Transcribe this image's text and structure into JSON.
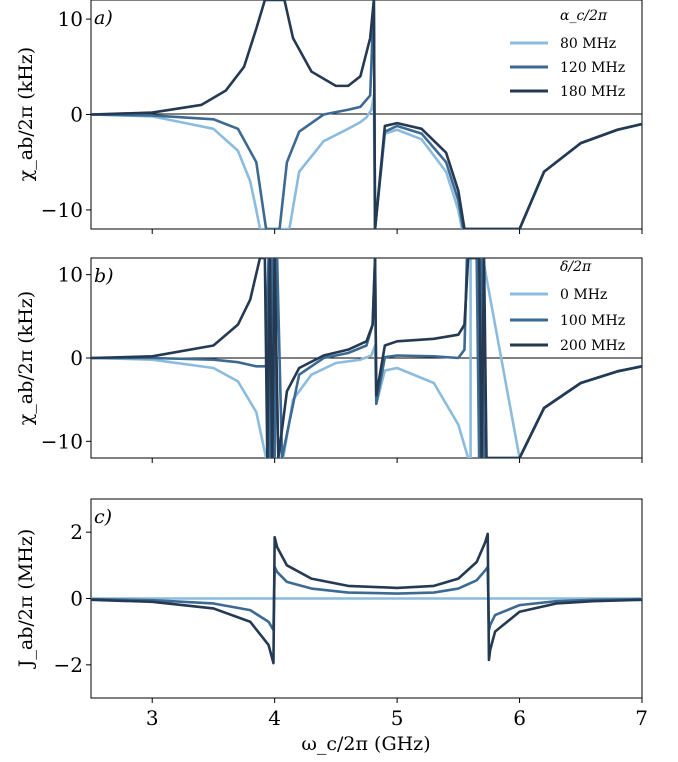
{
  "chart_data": [
    {
      "panel": "a",
      "type": "line",
      "panel_label": "a)",
      "ylabel": "χ_ab/2π (kHz)",
      "xlim": [
        2.5,
        7
      ],
      "ylim": [
        -12,
        12
      ],
      "yticks": [
        -10,
        0,
        10
      ],
      "ytick_labels": [
        "−10",
        "0",
        "10"
      ],
      "zero_line": true,
      "legend_title": "α_c/2π",
      "legend_position": "top-right",
      "series": [
        {
          "name": "80 MHz",
          "color": "#8cbcdd",
          "x": [
            2.5,
            3.0,
            3.5,
            3.7,
            3.8,
            3.85,
            3.88,
            4.12,
            4.2,
            4.4,
            4.6,
            4.7,
            4.75,
            4.79,
            4.81,
            4.819,
            4.9,
            5.0,
            5.2,
            5.4,
            5.5,
            5.53,
            6.0,
            6.2,
            6.5,
            6.8,
            7.0
          ],
          "y": [
            0,
            -0.2,
            -1.5,
            -3.8,
            -7,
            -10,
            -12,
            -12,
            -6,
            -2.8,
            -1.5,
            -0.8,
            -0.3,
            0.5,
            2,
            -12,
            -2,
            -1.6,
            -2.6,
            -6,
            -10,
            -12,
            -12,
            -6,
            -3,
            -1.6,
            -1
          ]
        },
        {
          "name": "120 MHz",
          "color": "#3d6a92",
          "x": [
            2.5,
            3.0,
            3.5,
            3.7,
            3.85,
            3.93,
            4.04,
            4.1,
            4.2,
            4.4,
            4.6,
            4.7,
            4.78,
            4.81,
            4.82,
            4.9,
            5.0,
            5.2,
            5.4,
            5.5,
            5.54,
            6.0,
            6.2,
            6.5,
            6.8,
            7.0
          ],
          "y": [
            0,
            -0.1,
            -0.5,
            -1.5,
            -5,
            -12,
            -12,
            -5,
            -1.8,
            0,
            0.5,
            0.8,
            2,
            12,
            -12,
            -1.8,
            -1.2,
            -2,
            -5,
            -9,
            -12,
            -12,
            -6,
            -3,
            -1.6,
            -1
          ]
        },
        {
          "name": "180 MHz",
          "color": "#253a52",
          "x": [
            2.5,
            3.0,
            3.4,
            3.6,
            3.75,
            3.85,
            3.92,
            4.08,
            4.15,
            4.3,
            4.5,
            4.6,
            4.7,
            4.78,
            4.81,
            4.82,
            4.9,
            5.0,
            5.2,
            5.4,
            5.5,
            5.55,
            6.0,
            6.2,
            6.5,
            6.8,
            7.0
          ],
          "y": [
            0,
            0.2,
            1,
            2.5,
            5,
            9,
            12,
            12,
            8,
            4.5,
            3,
            3,
            4,
            8,
            12,
            -12,
            -1.2,
            -0.9,
            -1.5,
            -4,
            -8,
            -12,
            -12,
            -6,
            -3,
            -1.6,
            -1
          ]
        }
      ]
    },
    {
      "panel": "b",
      "type": "line",
      "panel_label": "b)",
      "ylabel": "χ_ab/2π (kHz)",
      "xlim": [
        2.5,
        7
      ],
      "ylim": [
        -12,
        12
      ],
      "yticks": [
        -10,
        0,
        10
      ],
      "ytick_labels": [
        "−10",
        "0",
        "10"
      ],
      "zero_line": true,
      "legend_title": "δ/2π",
      "legend_position": "top-right",
      "series": [
        {
          "name": "0 MHz",
          "color": "#8cbcdd",
          "x": [
            2.5,
            3.0,
            3.5,
            3.7,
            3.85,
            3.93,
            4.07,
            4.15,
            4.3,
            4.5,
            4.7,
            4.79,
            4.82,
            4.83,
            4.9,
            5.0,
            5.3,
            5.5,
            5.58,
            5.6,
            5.6,
            5.7,
            6.0,
            6.2,
            6.5,
            6.8,
            7.0
          ],
          "y": [
            0,
            -0.2,
            -1.2,
            -2.8,
            -6.5,
            -12,
            -12,
            -5,
            -2,
            -0.6,
            -0.2,
            0.3,
            1.5,
            -5.5,
            -1.5,
            -1.2,
            -3,
            -8,
            -12,
            -12,
            12,
            12,
            -12,
            -6,
            -3,
            -1.6,
            -1
          ]
        },
        {
          "name": "100 MHz",
          "color": "#3d6a92",
          "x": [
            2.5,
            3.0,
            3.5,
            3.7,
            3.85,
            3.93,
            3.95,
            3.96,
            3.98,
            4.0,
            4.02,
            4.06,
            4.2,
            4.4,
            4.6,
            4.75,
            4.8,
            4.82,
            4.83,
            4.9,
            5.0,
            5.3,
            5.5,
            5.55,
            5.57,
            5.65,
            5.67,
            5.69,
            5.71,
            6.0,
            6.2,
            6.5,
            6.8,
            7.0
          ],
          "y": [
            0,
            0,
            -0.2,
            -0.5,
            -1,
            -1,
            12,
            -12,
            12,
            -12,
            12,
            -12,
            -2,
            0,
            0.6,
            1.5,
            4,
            12,
            -5.5,
            0.1,
            0.3,
            0.2,
            0,
            1,
            12,
            12,
            -12,
            12,
            -12,
            -12,
            -6,
            -3,
            -1.6,
            -1
          ]
        },
        {
          "name": "200 MHz",
          "color": "#253a52",
          "x": [
            2.5,
            3.0,
            3.5,
            3.7,
            3.8,
            3.88,
            3.92,
            3.94,
            3.96,
            3.98,
            4.0,
            4.03,
            4.1,
            4.2,
            4.4,
            4.6,
            4.75,
            4.8,
            4.82,
            4.83,
            4.9,
            5.0,
            5.3,
            5.5,
            5.55,
            5.58,
            5.67,
            5.69,
            5.71,
            5.73,
            6.0,
            6.2,
            6.5,
            6.8,
            7.0
          ],
          "y": [
            0,
            0.2,
            1.5,
            4,
            7,
            12,
            12,
            -12,
            12,
            -12,
            12,
            -12,
            -4,
            -1.2,
            0.3,
            1,
            2,
            4,
            12,
            -4.5,
            1.5,
            2,
            2.3,
            2.8,
            4,
            12,
            12,
            -12,
            12,
            -12,
            -12,
            -6,
            -3,
            -1.6,
            -1
          ]
        }
      ]
    },
    {
      "panel": "c",
      "type": "line",
      "panel_label": "c)",
      "ylabel": "J_ab/2π (MHz)",
      "xlabel": "ω_c/2π (GHz)",
      "xlim": [
        2.5,
        7
      ],
      "ylim": [
        -3,
        3
      ],
      "yticks": [
        -2,
        0,
        2
      ],
      "ytick_labels": [
        "−2",
        "0",
        "2"
      ],
      "xticks": [
        3,
        4,
        5,
        6,
        7
      ],
      "xtick_labels": [
        "3",
        "4",
        "5",
        "6",
        "7"
      ],
      "series": [
        {
          "color": "#8cbcdd",
          "x": [
            2.5,
            4.0,
            4.0,
            5.75,
            5.75,
            7.0
          ],
          "y": [
            0,
            0,
            0,
            0,
            0,
            0
          ]
        },
        {
          "color": "#3d6a92",
          "x": [
            2.5,
            3.0,
            3.5,
            3.8,
            3.95,
            3.99,
            4.0,
            4.02,
            4.1,
            4.3,
            4.6,
            5.0,
            5.3,
            5.5,
            5.65,
            5.72,
            5.74,
            5.75,
            5.76,
            5.8,
            6.0,
            6.3,
            6.6,
            7.0
          ],
          "y": [
            -0.02,
            -0.05,
            -0.15,
            -0.35,
            -0.7,
            -0.95,
            0.95,
            0.8,
            0.5,
            0.3,
            0.18,
            0.15,
            0.18,
            0.3,
            0.55,
            0.85,
            0.95,
            -0.95,
            -0.8,
            -0.5,
            -0.2,
            -0.08,
            -0.04,
            -0.02
          ]
        },
        {
          "color": "#253a52",
          "x": [
            2.5,
            3.0,
            3.5,
            3.8,
            3.95,
            3.99,
            4.0,
            4.02,
            4.1,
            4.3,
            4.6,
            5.0,
            5.3,
            5.5,
            5.65,
            5.72,
            5.74,
            5.75,
            5.76,
            5.8,
            6.0,
            6.3,
            6.6,
            7.0
          ],
          "y": [
            -0.04,
            -0.1,
            -0.3,
            -0.7,
            -1.4,
            -1.95,
            1.85,
            1.55,
            1.0,
            0.6,
            0.38,
            0.32,
            0.38,
            0.6,
            1.1,
            1.7,
            1.95,
            -1.85,
            -1.55,
            -1.0,
            -0.4,
            -0.15,
            -0.08,
            -0.04
          ]
        }
      ]
    }
  ]
}
